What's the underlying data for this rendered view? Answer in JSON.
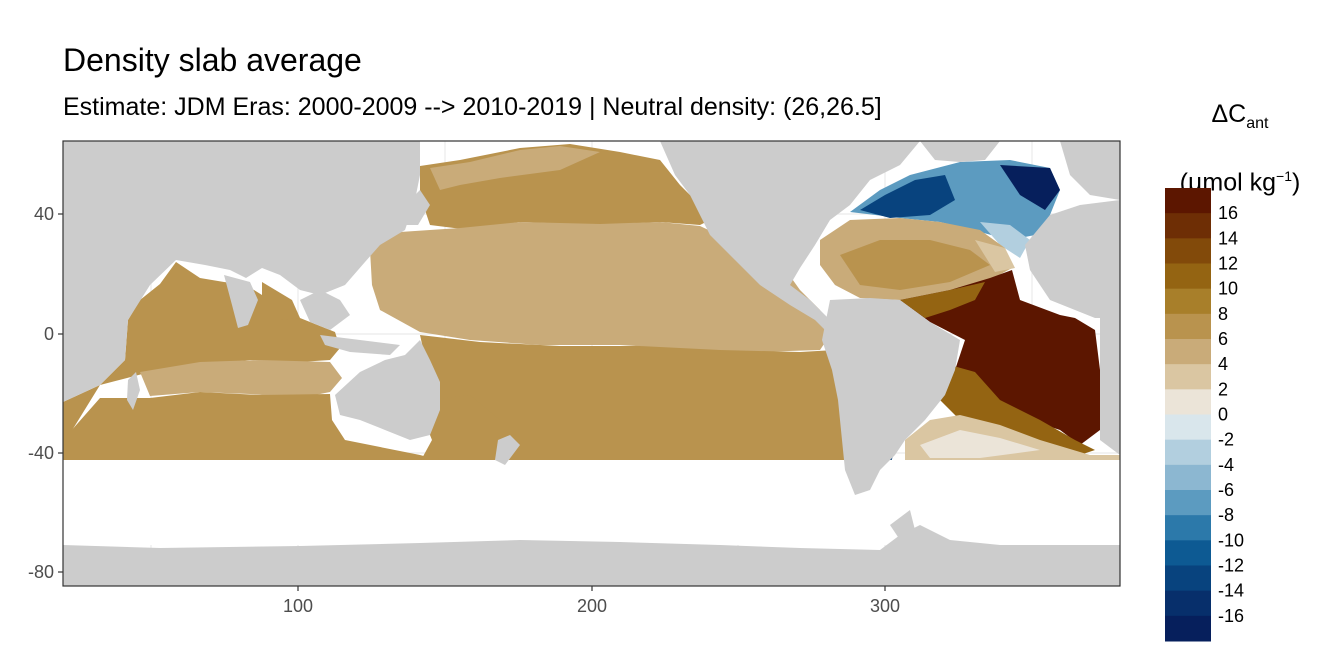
{
  "title": "Density slab average",
  "subtitle": "Estimate: JDM Eras: 2000-2009 --> 2010-2019 | Neutral density: (26,26.5]",
  "legend": {
    "title_main": "ΔC",
    "title_sub": "ant",
    "title_unit_prefix": "(µmol kg",
    "title_unit_sup": "−1",
    "title_unit_suffix": ")",
    "labels": [
      "16",
      "14",
      "12",
      "10",
      "8",
      "6",
      "4",
      "2",
      "0",
      "-2",
      "-4",
      "-6",
      "-8",
      "-10",
      "-12",
      "-14",
      "-16"
    ],
    "colors": [
      "#5c1600",
      "#6e2e05",
      "#824a0a",
      "#946412",
      "#a87f2a",
      "#b9934e",
      "#c9ab79",
      "#dac6a2",
      "#ebe4d8",
      "#d9e6ec",
      "#b2cfdf",
      "#8cb7d1",
      "#5c9bc0",
      "#2c79aa",
      "#0d5a93",
      "#08437e",
      "#072f6b",
      "#061f5c"
    ]
  },
  "colors": {
    "land": "#cccccc",
    "no_data": "#ffffff",
    "panel_border": "#333333",
    "grid": "#ebebeb"
  },
  "axes": {
    "x_ticks": [
      "100",
      "200",
      "300"
    ],
    "y_ticks": [
      "40",
      "0",
      "-40",
      "-80"
    ],
    "x_range": [
      20,
      380
    ],
    "y_range": [
      -85,
      65
    ]
  },
  "regions": {
    "north_atlantic_subpolar": -14,
    "north_atlantic_subtropical": 6,
    "tropical_atlantic": 16,
    "south_atlantic": 14,
    "pacific_north": 6,
    "pacific_tropical": 4,
    "pacific_south": 8,
    "indian_north": 8,
    "indian_south": 8
  }
}
